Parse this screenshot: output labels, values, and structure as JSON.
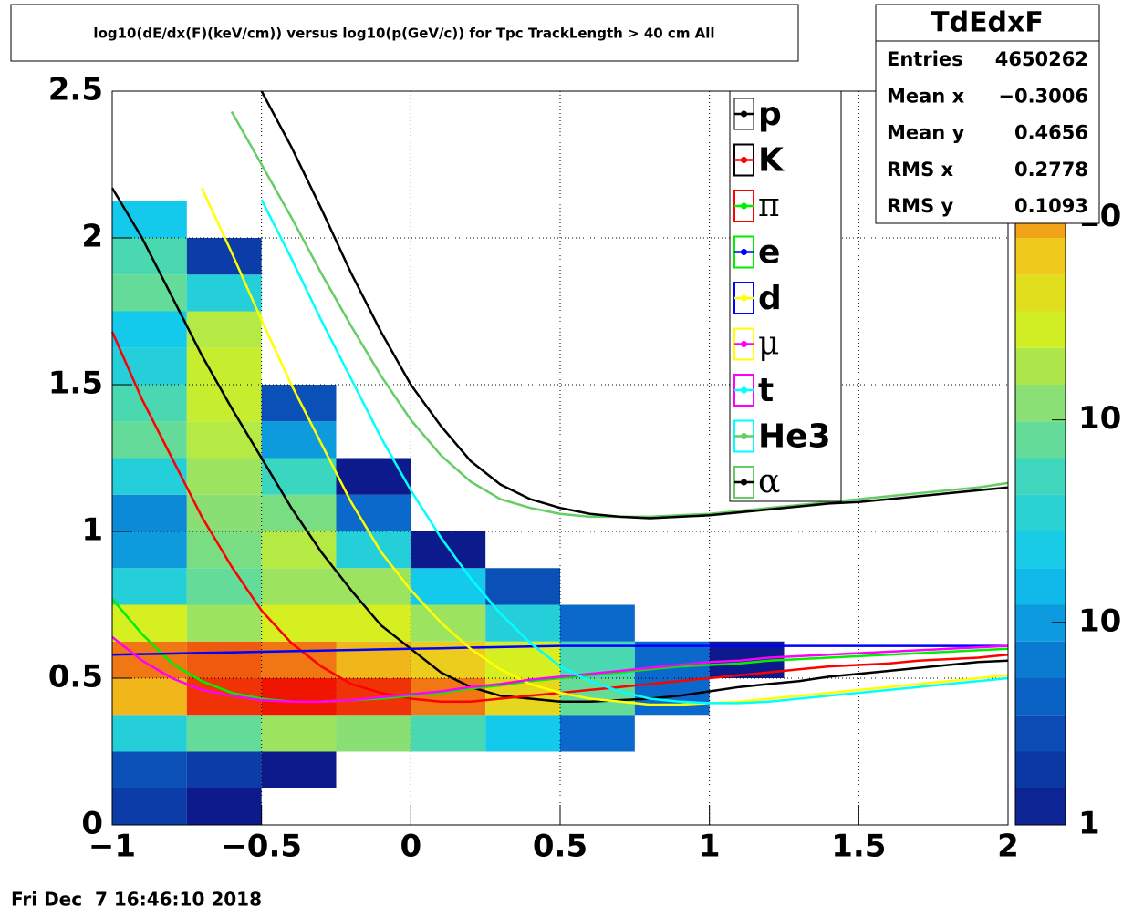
{
  "chart_data": {
    "type": "line",
    "title": "log10(dE/dx(F)(keV/cm)) versus log10(p(GeV/c)) for Tpc TrackLength > 40 cm All",
    "footer": "Fri Dec  7 16:46:10 2018",
    "xlim": [
      -1,
      2
    ],
    "ylim": [
      0,
      2.5
    ],
    "xticks": [
      {
        "value": -1,
        "label": "−1"
      },
      {
        "value": -0.5,
        "label": "−0.5"
      },
      0,
      0.5,
      1,
      1.5,
      2
    ],
    "yticks": [
      0,
      0.5,
      1,
      1.5,
      2,
      2.5
    ],
    "grid": true,
    "x": [
      -1,
      -0.9,
      -0.8,
      -0.7,
      -0.6,
      -0.5,
      -0.4,
      -0.3,
      -0.2,
      -0.1,
      0,
      0.1,
      0.2,
      0.3,
      0.4,
      0.5,
      0.6,
      0.7,
      0.8,
      0.9,
      1,
      1.1,
      1.2,
      1.3,
      1.4,
      1.5,
      1.6,
      1.7,
      1.8,
      1.9,
      2
    ],
    "series": [
      {
        "name": "p",
        "color": "#000000",
        "values": [
          2.17,
          2.0,
          1.8,
          1.6,
          1.42,
          1.25,
          1.08,
          0.93,
          0.8,
          0.68,
          0.6,
          0.52,
          0.47,
          0.44,
          0.43,
          0.42,
          0.42,
          0.425,
          0.43,
          0.44,
          0.455,
          0.47,
          0.48,
          0.49,
          0.505,
          0.515,
          0.525,
          0.535,
          0.545,
          0.555,
          0.56
        ]
      },
      {
        "name": "K",
        "color": "#ff0000",
        "values": [
          1.68,
          1.45,
          1.25,
          1.05,
          0.88,
          0.73,
          0.62,
          0.54,
          0.48,
          0.45,
          0.43,
          0.42,
          0.42,
          0.43,
          0.44,
          0.45,
          0.46,
          0.47,
          0.48,
          0.49,
          0.5,
          0.51,
          0.52,
          0.53,
          0.54,
          0.545,
          0.55,
          0.56,
          0.565,
          0.57,
          0.58
        ]
      },
      {
        "name": "π",
        "color": "#00ee00",
        "values": [
          0.77,
          0.65,
          0.55,
          0.49,
          0.45,
          0.43,
          0.42,
          0.42,
          0.425,
          0.43,
          0.44,
          0.45,
          0.465,
          0.475,
          0.49,
          0.5,
          0.51,
          0.52,
          0.53,
          0.54,
          0.545,
          0.55,
          0.56,
          0.565,
          0.57,
          0.575,
          0.58,
          0.585,
          0.59,
          0.595,
          0.6
        ]
      },
      {
        "name": "e",
        "color": "#0000ff",
        "values": [
          0.58,
          0.582,
          0.584,
          0.586,
          0.588,
          0.59,
          0.592,
          0.594,
          0.596,
          0.598,
          0.6,
          0.602,
          0.604,
          0.606,
          0.608,
          0.61,
          0.61,
          0.61,
          0.61,
          0.61,
          0.61,
          0.61,
          0.61,
          0.61,
          0.61,
          0.61,
          0.61,
          0.61,
          0.61,
          0.61,
          0.61
        ]
      },
      {
        "name": "d",
        "color": "#ffff00",
        "values": [
          null,
          null,
          null,
          2.17,
          1.95,
          1.72,
          1.5,
          1.3,
          1.1,
          0.93,
          0.8,
          0.69,
          0.6,
          0.53,
          0.48,
          0.45,
          0.43,
          0.42,
          0.41,
          0.41,
          0.415,
          0.42,
          0.43,
          0.44,
          0.45,
          0.46,
          0.47,
          0.48,
          0.49,
          0.5,
          0.51
        ]
      },
      {
        "name": "μ",
        "color": "#ff00ff",
        "values": [
          0.64,
          0.56,
          0.5,
          0.46,
          0.44,
          0.425,
          0.42,
          0.42,
          0.425,
          0.435,
          0.445,
          0.455,
          0.47,
          0.48,
          0.495,
          0.505,
          0.515,
          0.525,
          0.535,
          0.545,
          0.555,
          0.56,
          0.57,
          0.575,
          0.58,
          0.585,
          0.59,
          0.595,
          0.6,
          0.605,
          0.61
        ]
      },
      {
        "name": "t",
        "color": "#00ffff",
        "values": [
          null,
          null,
          null,
          null,
          null,
          2.13,
          1.93,
          1.72,
          1.52,
          1.32,
          1.14,
          0.98,
          0.84,
          0.72,
          0.62,
          0.54,
          0.49,
          0.455,
          0.43,
          0.42,
          0.415,
          0.415,
          0.42,
          0.43,
          0.44,
          0.45,
          0.46,
          0.47,
          0.48,
          0.49,
          0.5
        ]
      },
      {
        "name": "He3",
        "color": "#66cc66",
        "values": [
          null,
          null,
          null,
          null,
          2.43,
          2.25,
          2.07,
          1.88,
          1.7,
          1.53,
          1.38,
          1.26,
          1.17,
          1.11,
          1.08,
          1.06,
          1.05,
          1.05,
          1.05,
          1.055,
          1.06,
          1.07,
          1.08,
          1.09,
          1.1,
          1.11,
          1.12,
          1.13,
          1.14,
          1.15,
          1.165
        ]
      },
      {
        "name": "α",
        "color": "#000000",
        "values": [
          null,
          null,
          null,
          null,
          null,
          2.5,
          2.31,
          2.1,
          1.88,
          1.68,
          1.5,
          1.36,
          1.24,
          1.16,
          1.11,
          1.08,
          1.06,
          1.05,
          1.045,
          1.05,
          1.055,
          1.065,
          1.075,
          1.085,
          1.095,
          1.1,
          1.11,
          1.12,
          1.13,
          1.14,
          1.15
        ]
      }
    ],
    "xbins": [
      -1,
      -0.75,
      -0.5,
      -0.25,
      0,
      0.25,
      0.5,
      0.75,
      1,
      1.25,
      1.5,
      1.75,
      2
    ],
    "ybins": [
      0,
      0.125,
      0.25,
      0.375,
      0.5,
      0.625,
      0.75,
      0.875,
      1,
      1.125,
      1.25,
      1.375,
      1.5,
      1.625,
      1.75,
      1.875,
      2,
      2.125,
      2.25,
      2.375,
      2.5
    ],
    "z": [
      [
        2,
        1,
        0,
        0,
        0,
        0,
        0,
        0,
        0,
        0,
        0,
        0
      ],
      [
        3,
        2,
        1,
        0,
        0,
        0,
        0,
        0,
        0,
        0,
        0,
        0
      ],
      [
        30,
        80,
        150,
        120,
        60,
        20,
        5,
        0,
        0,
        0,
        0,
        0
      ],
      [
        800,
        3000,
        4000,
        3000,
        1500,
        500,
        80,
        5,
        0,
        0,
        0,
        0
      ],
      [
        1500,
        2000,
        1500,
        800,
        600,
        300,
        60,
        5,
        1,
        0,
        0,
        0
      ],
      [
        300,
        150,
        300,
        300,
        150,
        30,
        5,
        0,
        0,
        0,
        0,
        0
      ],
      [
        30,
        80,
        150,
        150,
        20,
        3,
        0,
        0,
        0,
        0,
        0,
        0
      ],
      [
        10,
        100,
        200,
        30,
        1,
        0,
        0,
        0,
        0,
        0,
        0,
        0
      ],
      [
        8,
        120,
        100,
        5,
        0,
        0,
        0,
        0,
        0,
        0,
        0,
        0
      ],
      [
        30,
        150,
        50,
        1,
        0,
        0,
        0,
        0,
        0,
        0,
        0,
        0
      ],
      [
        80,
        200,
        10,
        0,
        0,
        0,
        0,
        0,
        0,
        0,
        0,
        0
      ],
      [
        60,
        250,
        3,
        0,
        0,
        0,
        0,
        0,
        0,
        0,
        0,
        0
      ],
      [
        30,
        250,
        0,
        0,
        0,
        0,
        0,
        0,
        0,
        0,
        0,
        0
      ],
      [
        20,
        200,
        0,
        0,
        0,
        0,
        0,
        0,
        0,
        0,
        0,
        0
      ],
      [
        80,
        30,
        0,
        0,
        0,
        0,
        0,
        0,
        0,
        0,
        0,
        0
      ],
      [
        60,
        2,
        0,
        0,
        0,
        0,
        0,
        0,
        0,
        0,
        0,
        0
      ],
      [
        20,
        0,
        0,
        0,
        0,
        0,
        0,
        0,
        0,
        0,
        0,
        0
      ],
      [
        0,
        0,
        0,
        0,
        0,
        0,
        0,
        0,
        0,
        0,
        0,
        0
      ],
      [
        0,
        0,
        0,
        0,
        0,
        0,
        0,
        0,
        0,
        0,
        0,
        0
      ],
      [
        0,
        0,
        0,
        0,
        0,
        0,
        0,
        0,
        0,
        0,
        0,
        0
      ]
    ],
    "zlim": [
      1,
      4200
    ],
    "zlog": true,
    "zticks": [
      1,
      10,
      {
        "value": 100,
        "label": "10"
      },
      {
        "value": 1000,
        "label": "10"
      }
    ],
    "stats": {
      "title": "TdEdxF",
      "rows": [
        {
          "label": "Entries",
          "value": "4650262"
        },
        {
          "label": "Mean x",
          "value": "−0.3006"
        },
        {
          "label": "Mean y",
          "value": "0.4656"
        },
        {
          "label": "RMS x",
          "value": "0.2778"
        },
        {
          "label": "RMS y",
          "value": "0.1093"
        }
      ]
    }
  }
}
